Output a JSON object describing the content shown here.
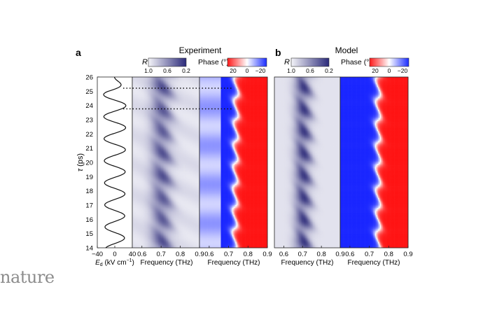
{
  "panels": {
    "a": {
      "letter": "a",
      "title": "Experiment"
    },
    "b": {
      "letter": "b",
      "title": "Model"
    }
  },
  "colorbars": {
    "r": {
      "label": "R",
      "ticks": [
        "1.0",
        "0.6",
        "0.2"
      ],
      "colors": [
        "#eeeef5",
        "#2b2a7a"
      ]
    },
    "phase": {
      "label": "Phase (°)",
      "ticks": [
        "20",
        "0",
        "−20"
      ],
      "colors": [
        "#ff1a1a",
        "#ffffff",
        "#1a2cff"
      ]
    }
  },
  "axes": {
    "y_label_symbol": "τ",
    "y_label_unit": "(ps)",
    "y_ticks": [
      "14",
      "15",
      "16",
      "17",
      "18",
      "19",
      "20",
      "21",
      "22",
      "23",
      "24",
      "25",
      "26"
    ],
    "ed_ticks": [
      "−40",
      "0",
      "40"
    ],
    "ed_label": "E",
    "ed_label_sub": "d",
    "ed_label_unit": " (kV cm",
    "ed_label_sup": "−1",
    "ed_label_close": ")",
    "freq_ticks": [
      "0.6",
      "0.7",
      "0.8",
      "0.9"
    ],
    "freq_label": "Frequency (THz)"
  },
  "chart_data": {
    "type": "heatmap",
    "x_range_thz": [
      0.55,
      0.9
    ],
    "y_range_ps": [
      14,
      26
    ],
    "field_range_kv_per_cm": [
      -40,
      40
    ],
    "marked_delays_ps": [
      23.7,
      25.2
    ],
    "panels": [
      "Experiment R",
      "Experiment Phase",
      "Model R",
      "Model Phase"
    ]
  },
  "watermark": "nature"
}
